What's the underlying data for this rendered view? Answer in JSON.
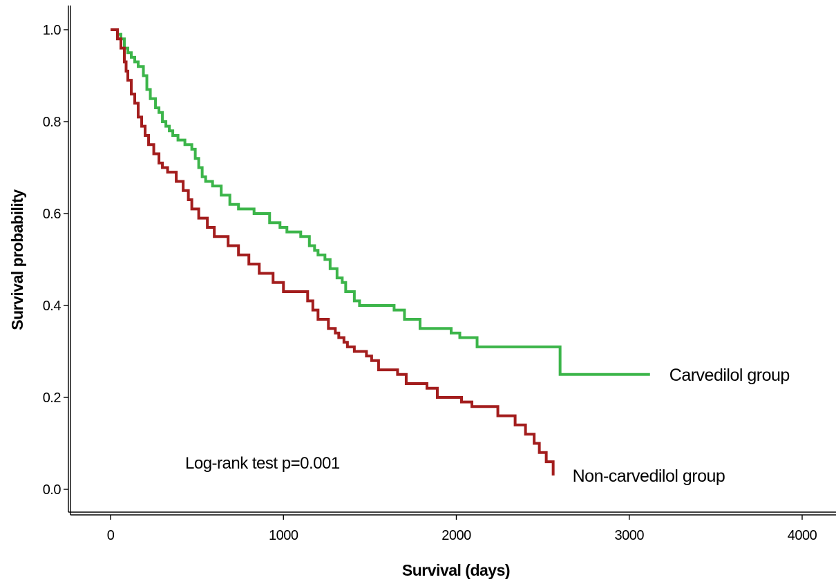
{
  "chart_data": {
    "type": "line",
    "subtype": "kaplan-meier step",
    "title": "",
    "xlabel": "Survival (days)",
    "ylabel": "Survival probability",
    "xlim": [
      0,
      4000
    ],
    "ylim": [
      0.0,
      1.0
    ],
    "x_ticks": [
      0,
      1000,
      2000,
      3000,
      4000
    ],
    "x_tick_labels": [
      "0",
      "1000",
      "2000",
      "3000",
      "4000"
    ],
    "y_ticks": [
      0.0,
      0.2,
      0.4,
      0.6,
      0.8,
      1.0
    ],
    "y_tick_labels": [
      "0.0",
      "0.2",
      "0.4",
      "0.6",
      "0.8",
      "1.0"
    ],
    "grid": false,
    "annotation": "Log-rank test p=0.001",
    "series": [
      {
        "name": "Carvedilol group",
        "color": "#3cb54a",
        "x": [
          0,
          40,
          60,
          80,
          100,
          120,
          140,
          160,
          190,
          210,
          230,
          260,
          280,
          300,
          320,
          340,
          360,
          390,
          430,
          470,
          490,
          510,
          530,
          550,
          590,
          640,
          690,
          740,
          830,
          920,
          980,
          1020,
          1100,
          1150,
          1180,
          1200,
          1240,
          1270,
          1310,
          1340,
          1360,
          1410,
          1440,
          1640,
          1700,
          1790,
          1970,
          2020,
          2120,
          2420,
          2600,
          3120
        ],
        "y": [
          1.0,
          0.99,
          0.98,
          0.96,
          0.95,
          0.94,
          0.93,
          0.92,
          0.9,
          0.87,
          0.85,
          0.83,
          0.82,
          0.8,
          0.79,
          0.78,
          0.77,
          0.76,
          0.75,
          0.74,
          0.72,
          0.7,
          0.68,
          0.67,
          0.66,
          0.64,
          0.62,
          0.61,
          0.6,
          0.58,
          0.57,
          0.56,
          0.55,
          0.53,
          0.52,
          0.51,
          0.5,
          0.48,
          0.46,
          0.45,
          0.43,
          0.41,
          0.4,
          0.39,
          0.37,
          0.35,
          0.34,
          0.33,
          0.31,
          0.31,
          0.25,
          0.25
        ]
      },
      {
        "name": "Non-carvedilol group",
        "color": "#a31d1d",
        "x": [
          0,
          40,
          60,
          80,
          90,
          100,
          120,
          140,
          160,
          180,
          200,
          220,
          250,
          280,
          300,
          330,
          380,
          420,
          450,
          470,
          510,
          560,
          600,
          680,
          740,
          800,
          860,
          940,
          1000,
          1140,
          1170,
          1200,
          1260,
          1300,
          1320,
          1350,
          1370,
          1410,
          1480,
          1510,
          1550,
          1660,
          1710,
          1830,
          1890,
          2030,
          2090,
          2240,
          2340,
          2400,
          2450,
          2480,
          2520,
          2560
        ],
        "y": [
          1.0,
          0.98,
          0.96,
          0.93,
          0.91,
          0.89,
          0.86,
          0.84,
          0.81,
          0.79,
          0.77,
          0.75,
          0.73,
          0.71,
          0.7,
          0.69,
          0.67,
          0.65,
          0.63,
          0.61,
          0.59,
          0.57,
          0.55,
          0.53,
          0.51,
          0.49,
          0.47,
          0.45,
          0.43,
          0.41,
          0.39,
          0.37,
          0.35,
          0.34,
          0.33,
          0.32,
          0.31,
          0.3,
          0.29,
          0.28,
          0.26,
          0.25,
          0.23,
          0.22,
          0.2,
          0.19,
          0.18,
          0.16,
          0.14,
          0.12,
          0.1,
          0.08,
          0.06,
          0.03
        ]
      }
    ]
  }
}
